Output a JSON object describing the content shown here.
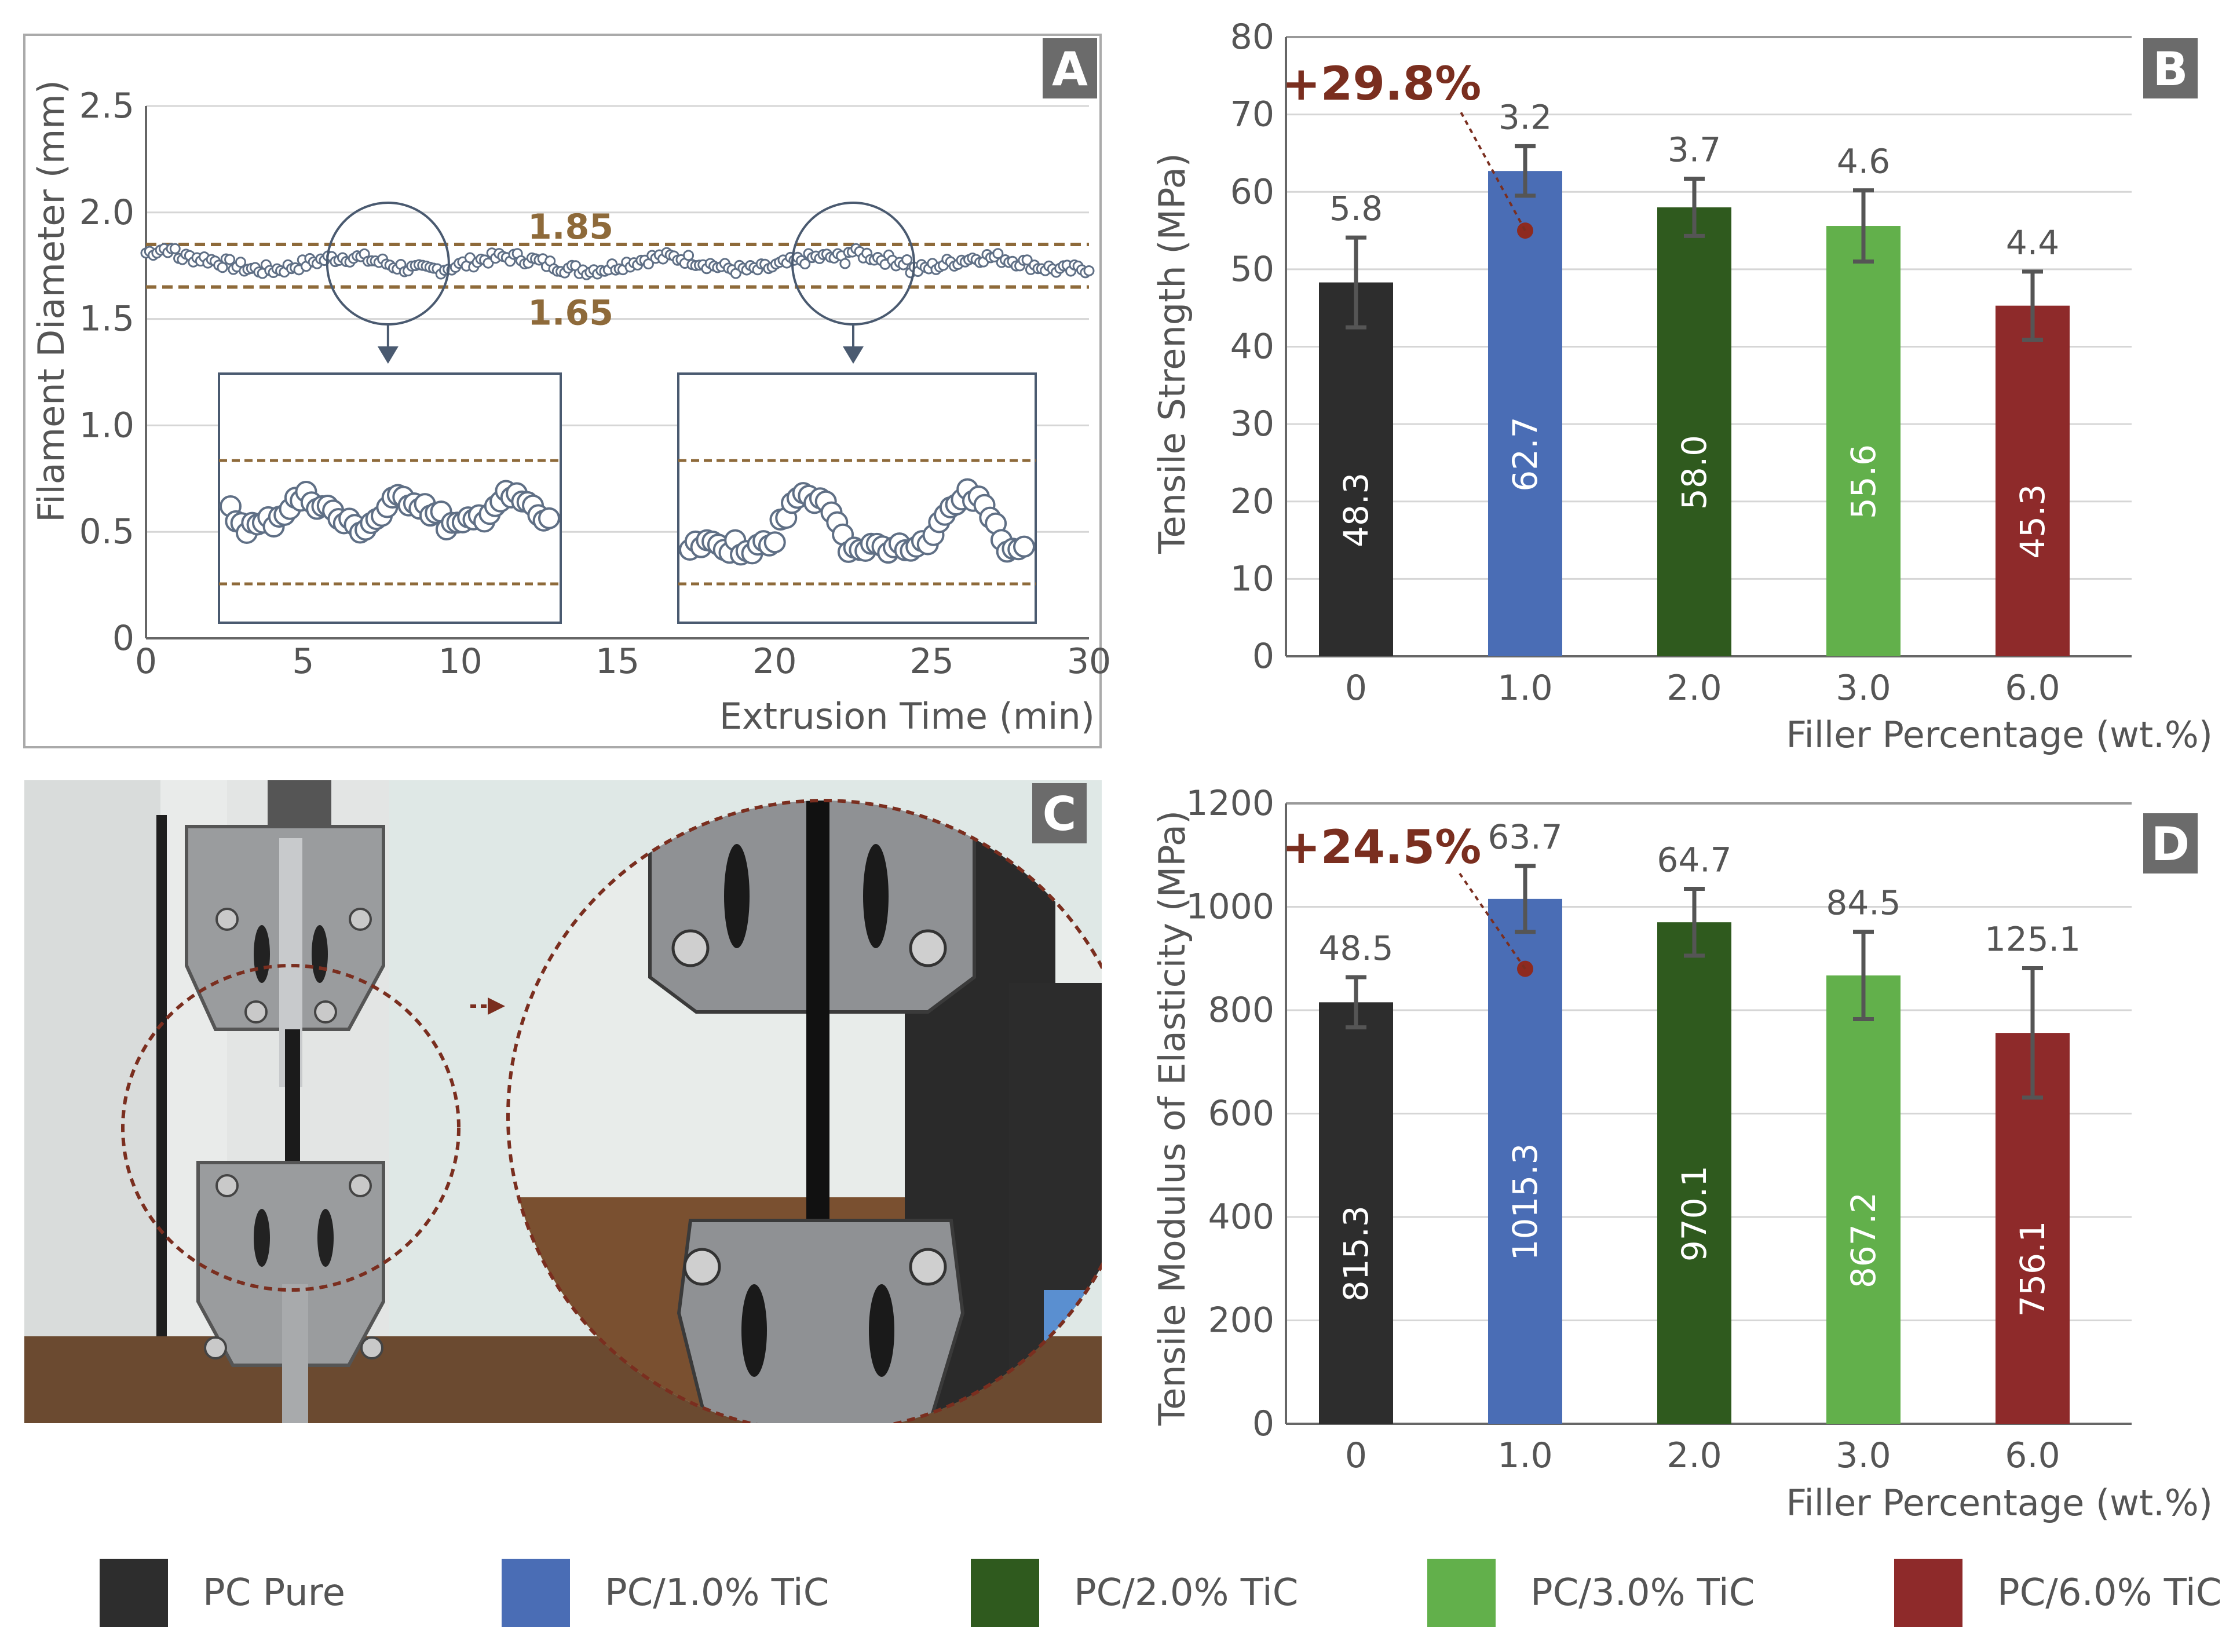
{
  "panel_letters": {
    "a": "A",
    "b": "B",
    "c": "C",
    "d": "D"
  },
  "colors": {
    "pc_pure": "#2d2d2d",
    "pc_1": "#4a6db5",
    "pc_2": "#2f5a1e",
    "pc_3": "#62b04b",
    "pc_6": "#8e2a2a",
    "annotation": "#7a2e1f",
    "limit_line": "#8e6a3a",
    "letter_box": "#6b6b6b"
  },
  "chart_data": [
    {
      "panel": "A",
      "type": "scatter",
      "xlabel": "Extrusion Time (min)",
      "ylabel": "Filament Diameter (mm)",
      "xlim": [
        0,
        30
      ],
      "ylim": [
        0,
        2.5
      ],
      "x_ticks": [
        "0",
        "5",
        "10",
        "15",
        "20",
        "25",
        "30"
      ],
      "y_ticks": [
        "0",
        "0.5",
        "1.0",
        "1.5",
        "2.0",
        "2.5"
      ],
      "grid": true,
      "reference_lines": [
        {
          "value": 1.85,
          "label": "1.85"
        },
        {
          "value": 1.65,
          "label": "1.65"
        }
      ],
      "series_summary": {
        "x_range": [
          0,
          30
        ],
        "y_mean": 1.76,
        "y_min": 1.69,
        "y_max": 1.83
      },
      "zoom_insets": [
        {
          "center_min": 7.7,
          "x_range": [
            2.4,
            13.2
          ]
        },
        {
          "center_min": 22.5,
          "x_range": [
            17.0,
            28.3
          ]
        }
      ]
    },
    {
      "panel": "B",
      "type": "bar",
      "xlabel": "Filler Percentage (wt.%)",
      "ylabel": "Tensile Strength (MPa)",
      "categories": [
        "0",
        "1.0",
        "2.0",
        "3.0",
        "6.0"
      ],
      "values": [
        48.3,
        62.7,
        58.0,
        55.6,
        45.3
      ],
      "value_labels": [
        "48.3",
        "62.7",
        "58.0",
        "55.6",
        "45.3"
      ],
      "errors": [
        5.8,
        3.2,
        3.7,
        4.6,
        4.4
      ],
      "error_labels": [
        "5.8",
        "3.2",
        "3.7",
        "4.6",
        "4.4"
      ],
      "ylim": [
        0,
        80
      ],
      "y_ticks": [
        "0",
        "10",
        "20",
        "30",
        "40",
        "50",
        "60",
        "70",
        "80"
      ],
      "annotation": {
        "text": "+29.8%",
        "category_index": 1,
        "point_value": 55
      }
    },
    {
      "panel": "D",
      "type": "bar",
      "xlabel": "Filler Percentage (wt.%)",
      "ylabel": "Tensile Modulus of Elasticity (MPa)",
      "categories": [
        "0",
        "1.0",
        "2.0",
        "3.0",
        "6.0"
      ],
      "values": [
        815.3,
        1015.3,
        970.1,
        867.2,
        756.1
      ],
      "value_labels": [
        "815.3",
        "1015.3",
        "970.1",
        "867.2",
        "756.1"
      ],
      "errors": [
        48.5,
        63.7,
        64.7,
        84.5,
        125.1
      ],
      "error_labels": [
        "48.5",
        "63.7",
        "64.7",
        "84.5",
        "125.1"
      ],
      "ylim": [
        0,
        1200
      ],
      "y_ticks": [
        "0",
        "200",
        "400",
        "600",
        "800",
        "1000",
        "1200"
      ],
      "annotation": {
        "text": "+24.5%",
        "category_index": 1,
        "point_value": 880
      }
    }
  ],
  "legend": {
    "items": [
      {
        "label": "PC Pure",
        "color_key": "pc_pure"
      },
      {
        "label": "PC/1.0% TiC",
        "color_key": "pc_1"
      },
      {
        "label": "PC/2.0% TiC",
        "color_key": "pc_2"
      },
      {
        "label": "PC/3.0% TiC",
        "color_key": "pc_3"
      },
      {
        "label": "PC/6.0% TiC",
        "color_key": "pc_6"
      }
    ]
  }
}
